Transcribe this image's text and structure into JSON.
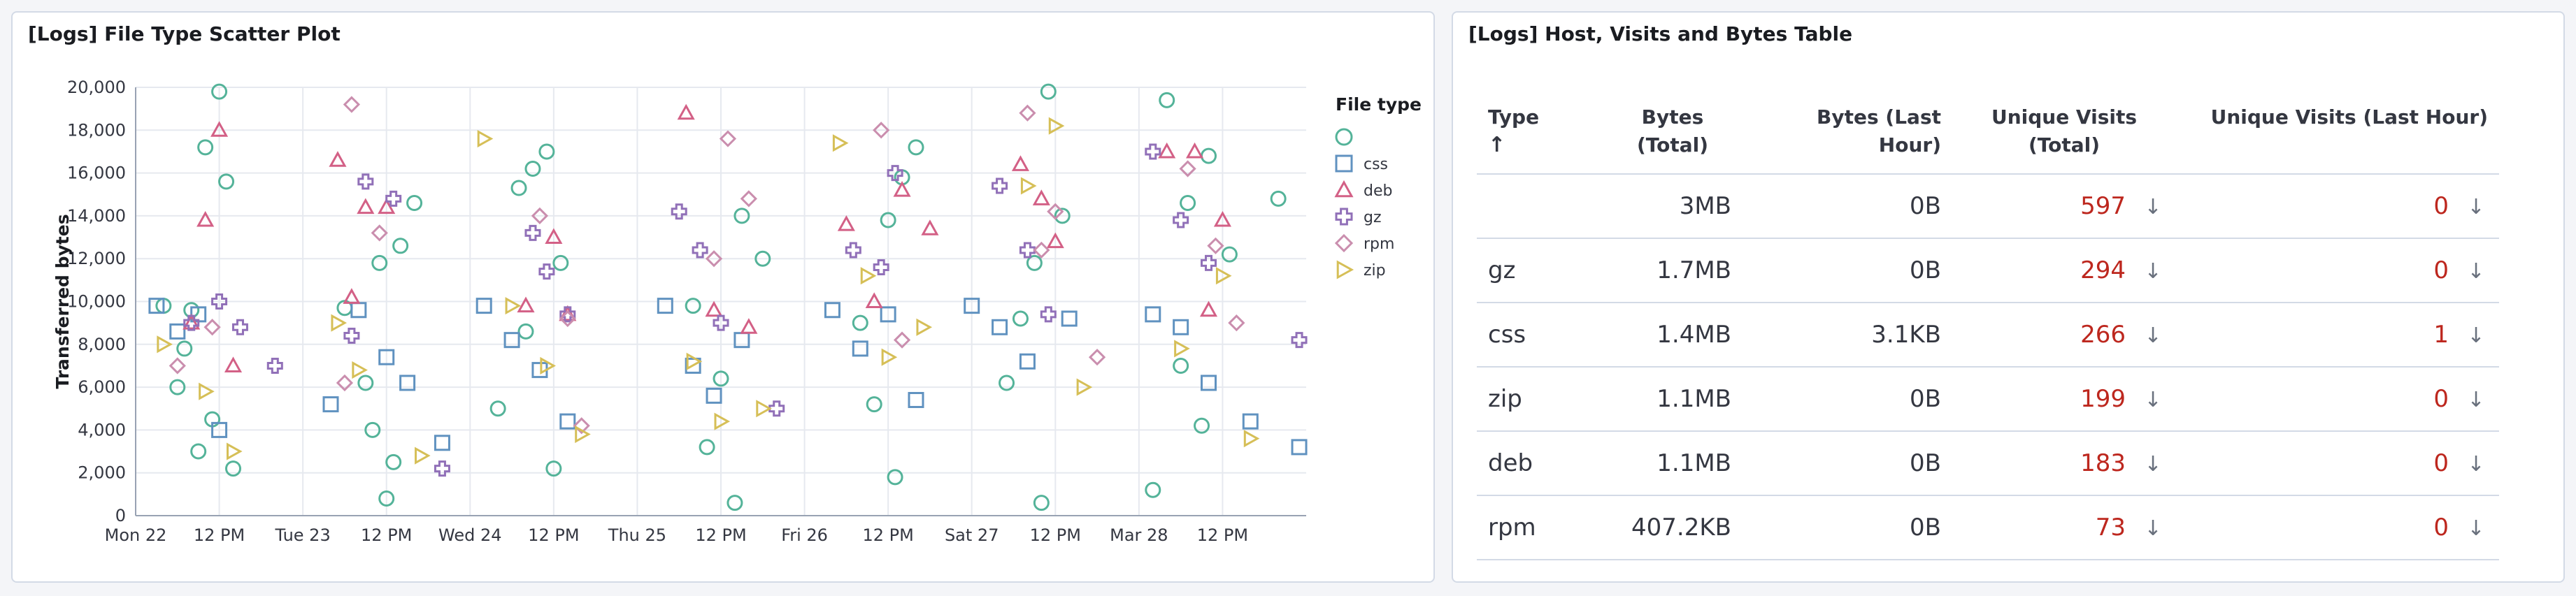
{
  "scatter_panel": {
    "title": "[Logs] File Type Scatter Plot"
  },
  "table_panel": {
    "title": "[Logs] Host, Visits and Bytes Table",
    "columns": {
      "type": "Type",
      "bytes_total": "Bytes (Total)",
      "bytes_last_hour": "Bytes (Last Hour)",
      "visits_total": "Unique Visits (Total)",
      "visits_last_hour": "Unique Visits (Last Hour)"
    },
    "rows": [
      {
        "type": "",
        "bytes_total": "3MB",
        "bytes_last_hour": "0B",
        "visits_total": "597",
        "visits_last_hour": "0"
      },
      {
        "type": "gz",
        "bytes_total": "1.7MB",
        "bytes_last_hour": "0B",
        "visits_total": "294",
        "visits_last_hour": "0"
      },
      {
        "type": "css",
        "bytes_total": "1.4MB",
        "bytes_last_hour": "3.1KB",
        "visits_total": "266",
        "visits_last_hour": "1"
      },
      {
        "type": "zip",
        "bytes_total": "1.1MB",
        "bytes_last_hour": "0B",
        "visits_total": "199",
        "visits_last_hour": "0"
      },
      {
        "type": "deb",
        "bytes_total": "1.1MB",
        "bytes_last_hour": "0B",
        "visits_total": "183",
        "visits_last_hour": "0"
      },
      {
        "type": "rpm",
        "bytes_total": "407.2KB",
        "bytes_last_hour": "0B",
        "visits_total": "73",
        "visits_last_hour": "0"
      }
    ],
    "colors": {
      "red_value": "#bd271e"
    }
  },
  "chart_data": {
    "type": "scatter",
    "title": "[Logs] File Type Scatter Plot",
    "xlabel": "",
    "ylabel": "Transferred bytes",
    "ylim": [
      0,
      20000
    ],
    "y_ticks": [
      "0",
      "2,000",
      "4,000",
      "6,000",
      "8,000",
      "10,000",
      "12,000",
      "14,000",
      "16,000",
      "18,000",
      "20,000"
    ],
    "y_tick_values": [
      0,
      2000,
      4000,
      6000,
      8000,
      10000,
      12000,
      14000,
      16000,
      18000,
      20000
    ],
    "xlim_hours": [
      0,
      168
    ],
    "x_ticks": [
      {
        "label": "Mon 22",
        "hour": 0
      },
      {
        "label": "12 PM",
        "hour": 12
      },
      {
        "label": "Tue 23",
        "hour": 24
      },
      {
        "label": "12 PM",
        "hour": 36
      },
      {
        "label": "Wed 24",
        "hour": 48
      },
      {
        "label": "12 PM",
        "hour": 60
      },
      {
        "label": "Thu 25",
        "hour": 72
      },
      {
        "label": "12 PM",
        "hour": 84
      },
      {
        "label": "Fri 26",
        "hour": 96
      },
      {
        "label": "12 PM",
        "hour": 108
      },
      {
        "label": "Sat 27",
        "hour": 120
      },
      {
        "label": "12 PM",
        "hour": 132
      },
      {
        "label": "Mar 28",
        "hour": 144
      },
      {
        "label": "12 PM",
        "hour": 156
      }
    ],
    "grid": true,
    "legend_title": "File type",
    "legend_position": "right",
    "series": [
      {
        "name": "",
        "shape": "circle",
        "color": "#54b399",
        "values": [
          [
            4,
            9800
          ],
          [
            8,
            9600
          ],
          [
            10,
            17200
          ],
          [
            12,
            19800
          ],
          [
            13,
            15600
          ],
          [
            6,
            6000
          ],
          [
            9,
            3000
          ],
          [
            11,
            4500
          ],
          [
            14,
            2200
          ],
          [
            7,
            7800
          ],
          [
            30,
            9700
          ],
          [
            33,
            6200
          ],
          [
            35,
            11800
          ],
          [
            38,
            12600
          ],
          [
            40,
            14600
          ],
          [
            34,
            4000
          ],
          [
            37,
            2500
          ],
          [
            36,
            800
          ],
          [
            55,
            15300
          ],
          [
            57,
            16200
          ],
          [
            59,
            17000
          ],
          [
            61,
            11800
          ],
          [
            56,
            8600
          ],
          [
            60,
            2200
          ],
          [
            52,
            5000
          ],
          [
            80,
            9800
          ],
          [
            84,
            6400
          ],
          [
            87,
            14000
          ],
          [
            90,
            12000
          ],
          [
            82,
            3200
          ],
          [
            86,
            600
          ],
          [
            104,
            9000
          ],
          [
            108,
            13800
          ],
          [
            110,
            15800
          ],
          [
            112,
            17200
          ],
          [
            106,
            5200
          ],
          [
            109,
            1800
          ],
          [
            127,
            9200
          ],
          [
            129,
            11800
          ],
          [
            131,
            19800
          ],
          [
            133,
            14000
          ],
          [
            125,
            6200
          ],
          [
            130,
            600
          ],
          [
            148,
            19400
          ],
          [
            151,
            14600
          ],
          [
            154,
            16800
          ],
          [
            157,
            12200
          ],
          [
            150,
            7000
          ],
          [
            153,
            4200
          ],
          [
            164,
            14800
          ],
          [
            146,
            1200
          ]
        ]
      },
      {
        "name": "css",
        "shape": "square",
        "color": "#6092c0",
        "values": [
          [
            3,
            9800
          ],
          [
            6,
            8600
          ],
          [
            9,
            9400
          ],
          [
            12,
            4000
          ],
          [
            28,
            5200
          ],
          [
            32,
            9600
          ],
          [
            36,
            7400
          ],
          [
            39,
            6200
          ],
          [
            44,
            3400
          ],
          [
            50,
            9800
          ],
          [
            54,
            8200
          ],
          [
            58,
            6800
          ],
          [
            62,
            4400
          ],
          [
            76,
            9800
          ],
          [
            80,
            7000
          ],
          [
            83,
            5600
          ],
          [
            87,
            8200
          ],
          [
            100,
            9600
          ],
          [
            104,
            7800
          ],
          [
            108,
            9400
          ],
          [
            112,
            5400
          ],
          [
            120,
            9800
          ],
          [
            124,
            8800
          ],
          [
            128,
            7200
          ],
          [
            134,
            9200
          ],
          [
            146,
            9400
          ],
          [
            150,
            8800
          ],
          [
            154,
            6200
          ],
          [
            160,
            4400
          ],
          [
            167,
            3200
          ]
        ]
      },
      {
        "name": "deb",
        "shape": "triangle",
        "color": "#d36086",
        "values": [
          [
            10,
            13800
          ],
          [
            12,
            18000
          ],
          [
            8,
            9000
          ],
          [
            14,
            7000
          ],
          [
            29,
            16600
          ],
          [
            33,
            14400
          ],
          [
            36,
            14400
          ],
          [
            31,
            10200
          ],
          [
            56,
            9800
          ],
          [
            60,
            13000
          ],
          [
            62,
            9400
          ],
          [
            79,
            18800
          ],
          [
            83,
            9600
          ],
          [
            88,
            8800
          ],
          [
            102,
            13600
          ],
          [
            106,
            10000
          ],
          [
            110,
            15200
          ],
          [
            114,
            13400
          ],
          [
            127,
            16400
          ],
          [
            130,
            14800
          ],
          [
            132,
            12800
          ],
          [
            148,
            17000
          ],
          [
            152,
            17000
          ],
          [
            156,
            13800
          ],
          [
            154,
            9600
          ]
        ]
      },
      {
        "name": "gz",
        "shape": "cross",
        "color": "#9170b8",
        "values": [
          [
            8,
            9000
          ],
          [
            12,
            10000
          ],
          [
            15,
            8800
          ],
          [
            33,
            15600
          ],
          [
            37,
            14800
          ],
          [
            31,
            8400
          ],
          [
            57,
            13200
          ],
          [
            59,
            11400
          ],
          [
            62,
            9400
          ],
          [
            78,
            14200
          ],
          [
            81,
            12400
          ],
          [
            84,
            9000
          ],
          [
            103,
            12400
          ],
          [
            107,
            11600
          ],
          [
            109,
            16000
          ],
          [
            124,
            15400
          ],
          [
            128,
            12400
          ],
          [
            131,
            9400
          ],
          [
            146,
            17000
          ],
          [
            150,
            13800
          ],
          [
            154,
            11800
          ],
          [
            167,
            8200
          ],
          [
            20,
            7000
          ],
          [
            44,
            2200
          ],
          [
            92,
            5000
          ]
        ]
      },
      {
        "name": "rpm",
        "shape": "diamond",
        "color": "#ca8eae",
        "values": [
          [
            6,
            7000
          ],
          [
            11,
            8800
          ],
          [
            31,
            19200
          ],
          [
            35,
            13200
          ],
          [
            30,
            6200
          ],
          [
            58,
            14000
          ],
          [
            62,
            9200
          ],
          [
            85,
            17600
          ],
          [
            88,
            14800
          ],
          [
            83,
            12000
          ],
          [
            107,
            18000
          ],
          [
            110,
            8200
          ],
          [
            128,
            18800
          ],
          [
            132,
            14200
          ],
          [
            130,
            12400
          ],
          [
            151,
            16200
          ],
          [
            155,
            12600
          ],
          [
            158,
            9000
          ],
          [
            64,
            4200
          ],
          [
            138,
            7400
          ]
        ]
      },
      {
        "name": "zip",
        "shape": "right-triangle",
        "color": "#d6bf57",
        "values": [
          [
            4,
            8000
          ],
          [
            10,
            5800
          ],
          [
            14,
            3000
          ],
          [
            29,
            9000
          ],
          [
            32,
            6800
          ],
          [
            41,
            2800
          ],
          [
            50,
            17600
          ],
          [
            54,
            9800
          ],
          [
            59,
            7000
          ],
          [
            64,
            3800
          ],
          [
            80,
            7200
          ],
          [
            84,
            4400
          ],
          [
            90,
            5000
          ],
          [
            101,
            17400
          ],
          [
            105,
            11200
          ],
          [
            108,
            7400
          ],
          [
            113,
            8800
          ],
          [
            128,
            15400
          ],
          [
            132,
            18200
          ],
          [
            136,
            6000
          ],
          [
            150,
            7800
          ],
          [
            156,
            11200
          ],
          [
            160,
            3600
          ]
        ]
      }
    ]
  }
}
